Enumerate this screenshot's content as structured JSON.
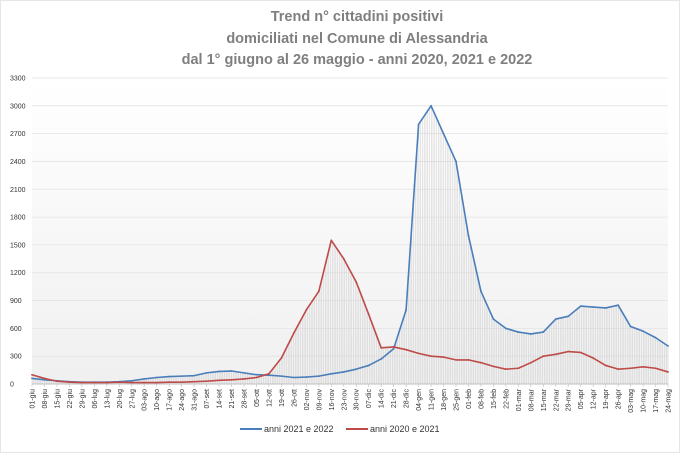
{
  "chart_data": {
    "type": "line",
    "title_lines": [
      "Trend n° cittadini positivi",
      "domiciliati nel Comune di Alessandria",
      "dal 1° giugno al 26 maggio - anni 2020, 2021 e 2022"
    ],
    "ylim": [
      0,
      3300
    ],
    "yticks": [
      0,
      300,
      600,
      900,
      1200,
      1500,
      1800,
      2100,
      2400,
      2700,
      3000,
      3300
    ],
    "grid": "horizontal",
    "legend_position": "bottom",
    "x_start_date": "01-giu",
    "x": [
      "01-giu",
      "08-giu",
      "15-giu",
      "22-giu",
      "29-giu",
      "06-lug",
      "13-lug",
      "20-lug",
      "27-lug",
      "03-ago",
      "10-ago",
      "17-ago",
      "24-ago",
      "31-ago",
      "07-set",
      "14-set",
      "21-set",
      "28-set",
      "05-ott",
      "12-ott",
      "19-ott",
      "26-ott",
      "02-nov",
      "09-nov",
      "16-nov",
      "23-nov",
      "30-nov",
      "07-dic",
      "14-dic",
      "21-dic",
      "28-dic",
      "04-gen",
      "11-gen",
      "18-gen",
      "25-gen",
      "01-feb",
      "08-feb",
      "15-feb",
      "22-feb",
      "01-mar",
      "08-mar",
      "15-mar",
      "22-mar",
      "29-mar",
      "05-apr",
      "12-apr",
      "19-apr",
      "26-apr",
      "03-mag",
      "10-mag",
      "17-mag",
      "24-mag"
    ],
    "series": [
      {
        "name": "anni 2021 e 2022",
        "color": "#4a7ebb",
        "values": [
          60,
          45,
          35,
          25,
          20,
          20,
          20,
          25,
          35,
          55,
          70,
          80,
          85,
          90,
          120,
          135,
          140,
          120,
          100,
          95,
          85,
          70,
          75,
          85,
          110,
          130,
          160,
          200,
          270,
          380,
          800,
          2800,
          3000,
          2700,
          2400,
          1600,
          1000,
          700,
          600,
          560,
          540,
          560,
          700,
          730,
          840,
          830,
          820,
          850,
          620,
          570,
          500,
          410
        ]
      },
      {
        "name": "anni 2020 e 2021",
        "color": "#be4b48",
        "values": [
          100,
          60,
          30,
          20,
          15,
          15,
          15,
          20,
          15,
          15,
          15,
          20,
          20,
          25,
          30,
          40,
          45,
          55,
          70,
          110,
          280,
          550,
          800,
          1000,
          1550,
          1350,
          1100,
          750,
          390,
          400,
          370,
          330,
          300,
          290,
          260,
          260,
          230,
          190,
          160,
          170,
          230,
          300,
          320,
          350,
          340,
          280,
          200,
          160,
          170,
          185,
          170,
          130
        ]
      }
    ]
  }
}
